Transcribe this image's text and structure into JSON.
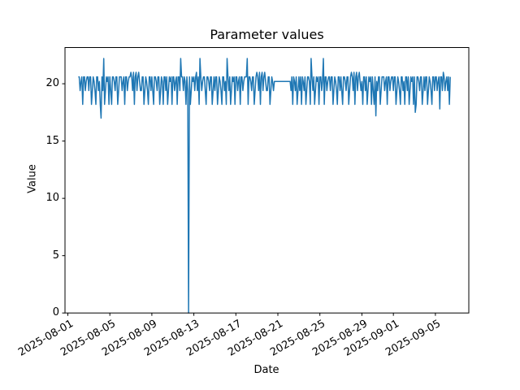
{
  "figure": {
    "title": "Parameter values",
    "xlabel": "Date",
    "ylabel": "Value"
  },
  "chart_data": {
    "type": "line",
    "title": "Parameter values",
    "xlabel": "Date",
    "ylabel": "Value",
    "legend": null,
    "grid": false,
    "line_color": "#1f77b4",
    "background_color": "#ffffff",
    "x_start_date": "2025-08-02",
    "x_end_date": "2025-09-06",
    "x_samples_per_day": 12,
    "x_first_sample_day_offset": 1,
    "x_tick_labels": [
      "2025-08-01",
      "2025-08-05",
      "2025-08-09",
      "2025-08-13",
      "2025-08-17",
      "2025-08-21",
      "2025-08-25",
      "2025-08-29",
      "2025-09-01",
      "2025-09-05"
    ],
    "x_tick_day_offsets": [
      0,
      4,
      8,
      12,
      16,
      20,
      24,
      28,
      31,
      35
    ],
    "x_tick_rotation_deg": 30,
    "y_ticks": [
      0,
      5,
      10,
      15,
      20
    ],
    "ylim": [
      0,
      23.16
    ],
    "anomaly_note_min_value": 0.0,
    "anomaly_day_offset": 11.5,
    "values": [
      20.6,
      20.6,
      19.4,
      20.2,
      20.6,
      18.2,
      20.6,
      20.6,
      19.4,
      20.2,
      20.6,
      20.6,
      19.4,
      20.6,
      20.6,
      18.2,
      19.4,
      20.6,
      20.2,
      19.4,
      18.2,
      20.6,
      20.6,
      19.4,
      20.2,
      18.2,
      17.0,
      20.6,
      19.4,
      22.2,
      18.2,
      19.4,
      20.6,
      20.2,
      20.6,
      18.2,
      20.6,
      19.4,
      18.2,
      20.6,
      20.6,
      20.2,
      19.4,
      20.6,
      20.6,
      18.2,
      19.4,
      20.6,
      20.6,
      20.6,
      19.4,
      20.2,
      20.6,
      18.2,
      20.6,
      20.6,
      19.4,
      20.2,
      20.6,
      20.6,
      21.0,
      20.6,
      19.4,
      21.0,
      18.2,
      20.6,
      21.0,
      19.4,
      20.6,
      21.0,
      20.2,
      19.4,
      19.4,
      20.6,
      20.6,
      18.2,
      19.4,
      20.6,
      20.2,
      19.4,
      18.2,
      20.6,
      20.6,
      19.4,
      20.6,
      19.4,
      18.2,
      20.6,
      20.6,
      20.2,
      19.4,
      20.6,
      20.6,
      18.2,
      19.4,
      20.6,
      20.2,
      18.2,
      20.6,
      20.6,
      19.4,
      20.6,
      18.2,
      19.4,
      20.6,
      20.2,
      20.6,
      18.2,
      20.6,
      20.6,
      19.4,
      20.2,
      20.6,
      18.2,
      20.6,
      20.6,
      19.4,
      22.2,
      20.6,
      20.6,
      19.4,
      20.6,
      20.2,
      18.2,
      20.6,
      19.4,
      0.0,
      20.6,
      18.2,
      19.4,
      20.6,
      20.2,
      20.6,
      19.4,
      20.6,
      21.0,
      19.4,
      20.6,
      18.2,
      22.2,
      20.6,
      19.4,
      20.2,
      20.6,
      20.6,
      19.4,
      18.2,
      20.6,
      20.6,
      20.2,
      19.4,
      20.6,
      20.6,
      18.2,
      19.4,
      20.6,
      19.4,
      20.6,
      20.6,
      18.2,
      19.4,
      20.6,
      20.2,
      19.4,
      18.2,
      20.6,
      20.6,
      19.4,
      20.2,
      18.2,
      22.2,
      20.6,
      19.4,
      20.6,
      18.2,
      19.4,
      20.6,
      20.2,
      20.6,
      18.2,
      20.6,
      20.6,
      19.4,
      20.2,
      20.6,
      18.2,
      20.6,
      20.6,
      19.4,
      20.2,
      20.6,
      20.6,
      20.6,
      22.2,
      18.2,
      20.6,
      20.6,
      20.2,
      19.4,
      20.6,
      20.6,
      18.2,
      19.4,
      20.6,
      21.0,
      20.6,
      19.4,
      21.0,
      18.2,
      20.6,
      21.0,
      19.4,
      20.6,
      21.0,
      20.2,
      19.4,
      19.4,
      20.6,
      20.6,
      18.2,
      19.4,
      20.6,
      20.2,
      19.4,
      20.2,
      20.2,
      20.2,
      20.2,
      20.2,
      20.2,
      20.2,
      20.2,
      20.2,
      20.2,
      20.2,
      20.2,
      20.2,
      20.2,
      20.2,
      20.2,
      20.2,
      20.2,
      20.2,
      19.4,
      20.6,
      18.2,
      20.6,
      20.2,
      19.4,
      20.6,
      18.2,
      19.4,
      20.6,
      19.4,
      20.6,
      18.2,
      20.6,
      20.2,
      19.4,
      20.6,
      18.2,
      19.4,
      20.6,
      20.6,
      20.2,
      18.2,
      22.2,
      20.6,
      19.4,
      20.6,
      18.2,
      19.4,
      20.6,
      20.2,
      20.6,
      18.2,
      20.6,
      20.6,
      19.4,
      20.2,
      22.2,
      18.2,
      20.6,
      20.6,
      19.4,
      20.2,
      20.6,
      20.6,
      19.4,
      20.6,
      20.6,
      18.2,
      19.4,
      20.6,
      20.2,
      19.4,
      18.2,
      20.6,
      20.6,
      19.4,
      20.6,
      19.4,
      18.2,
      20.6,
      20.6,
      20.2,
      19.4,
      20.6,
      20.6,
      18.2,
      19.4,
      20.6,
      21.0,
      20.6,
      19.4,
      21.0,
      18.2,
      20.6,
      21.0,
      19.4,
      20.6,
      21.0,
      20.2,
      19.4,
      20.2,
      18.2,
      20.6,
      20.6,
      19.4,
      20.6,
      18.2,
      19.4,
      20.6,
      20.2,
      20.6,
      18.2,
      20.6,
      19.4,
      18.2,
      20.6,
      17.2,
      20.2,
      19.4,
      20.6,
      20.6,
      18.2,
      19.4,
      20.6,
      20.6,
      20.6,
      19.4,
      20.2,
      20.6,
      18.2,
      20.6,
      20.6,
      19.4,
      20.2,
      20.6,
      20.6,
      19.4,
      20.6,
      20.6,
      18.2,
      19.4,
      20.6,
      20.2,
      19.4,
      18.2,
      20.6,
      20.6,
      19.4,
      20.2,
      18.2,
      20.6,
      20.6,
      19.4,
      20.6,
      18.2,
      19.4,
      20.6,
      20.2,
      20.6,
      18.2,
      20.6,
      17.5,
      18.2,
      20.6,
      20.6,
      20.2,
      19.4,
      20.6,
      20.6,
      18.2,
      19.4,
      20.6,
      19.4,
      20.6,
      20.6,
      18.2,
      19.4,
      20.6,
      20.2,
      19.4,
      18.2,
      20.6,
      20.6,
      19.4,
      20.6,
      20.6,
      19.4,
      20.2,
      20.6,
      17.8,
      20.6,
      20.6,
      19.4,
      21.0,
      20.6,
      19.4,
      20.2,
      20.6,
      19.4,
      20.6,
      18.2,
      20.6
    ]
  }
}
